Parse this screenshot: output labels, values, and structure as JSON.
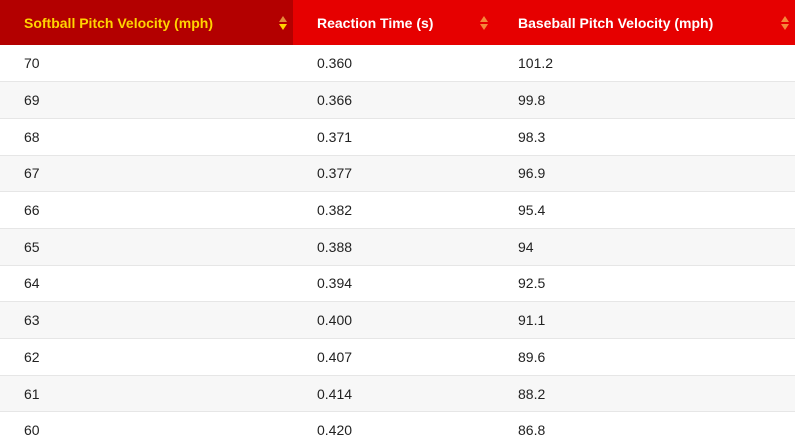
{
  "table": {
    "columns": [
      {
        "label": "Softball Pitch Velocity (mph)",
        "sorted": true
      },
      {
        "label": "Reaction Time (s)",
        "sorted": false
      },
      {
        "label": "Baseball Pitch Velocity (mph)",
        "sorted": false
      }
    ],
    "rows": [
      [
        "70",
        "0.360",
        "101.2"
      ],
      [
        "69",
        "0.366",
        "99.8"
      ],
      [
        "68",
        "0.371",
        "98.3"
      ],
      [
        "67",
        "0.377",
        "96.9"
      ],
      [
        "66",
        "0.382",
        "95.4"
      ],
      [
        "65",
        "0.388",
        "94"
      ],
      [
        "64",
        "0.394",
        "92.5"
      ],
      [
        "63",
        "0.400",
        "91.1"
      ],
      [
        "62",
        "0.407",
        "89.6"
      ],
      [
        "61",
        "0.414",
        "88.2"
      ],
      [
        "60",
        "0.420",
        "86.8"
      ]
    ]
  },
  "colors": {
    "header_bg": "#e60000",
    "sorted_header_bg": "#b30000",
    "sorted_header_text": "#ffd400",
    "sort_arrow": "#f5883a",
    "row_stripe": "#f7f7f7"
  },
  "icons": {
    "sort": "sort-arrows-icon"
  }
}
